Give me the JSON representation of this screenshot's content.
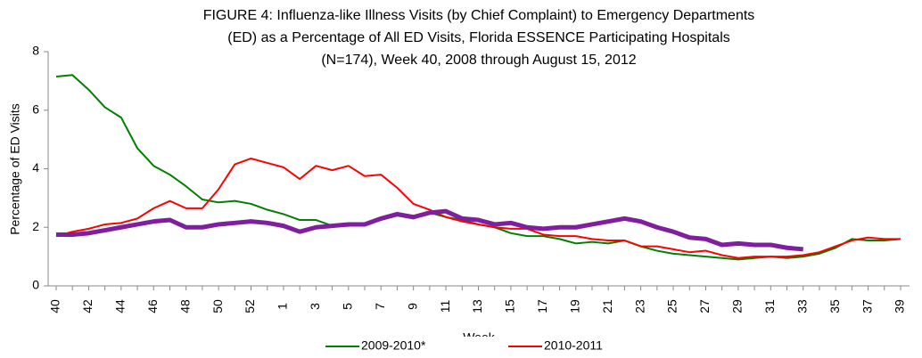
{
  "chart_data": {
    "type": "line",
    "title": [
      "FIGURE 4: Influenza-like Illness Visits (by Chief Complaint) to Emergency Departments",
      "(ED) as a Percentage of All ED Visits, Florida ESSENCE Participating Hospitals",
      "(N=174), Week 40, 2008 through August 15, 2012"
    ],
    "ylabel": "Percentage of ED Visits",
    "xlabel": "Week",
    "categories": [
      "40",
      null,
      "42",
      null,
      "44",
      null,
      "46",
      null,
      "48",
      null,
      "50",
      null,
      "52",
      null,
      "1",
      null,
      "3",
      null,
      "5",
      null,
      "7",
      null,
      "9",
      null,
      "11",
      null,
      "13",
      null,
      "15",
      null,
      "17",
      null,
      "19",
      null,
      "21",
      null,
      "23",
      null,
      "25",
      null,
      "27",
      null,
      "29",
      null,
      "31",
      null,
      "33",
      null,
      "35",
      null,
      "37",
      null,
      "39"
    ],
    "ylim": [
      0,
      8
    ],
    "yticks": [
      0,
      2,
      4,
      6,
      8
    ],
    "series": [
      {
        "name": "2009-2010*",
        "color": "#008000",
        "width": 2,
        "values": [
          7.15,
          7.2,
          6.7,
          6.1,
          5.75,
          4.7,
          4.1,
          3.8,
          3.4,
          2.95,
          2.85,
          2.9,
          2.8,
          2.6,
          2.45,
          2.25,
          2.25,
          2.05,
          2.05,
          2.1,
          2.25,
          2.4,
          2.3,
          2.5,
          2.35,
          2.25,
          2.1,
          2.0,
          1.8,
          1.7,
          1.7,
          1.6,
          1.45,
          1.5,
          1.45,
          1.55,
          1.35,
          1.2,
          1.1,
          1.05,
          1.0,
          0.95,
          0.9,
          0.95,
          1.0,
          0.95,
          1.0,
          1.1,
          1.3,
          1.6,
          1.55,
          1.55,
          1.6
        ]
      },
      {
        "name": "2010-2011",
        "color": "#ff0000",
        "width": 2,
        "values": [
          1.7,
          1.85,
          1.95,
          2.1,
          2.15,
          2.3,
          2.65,
          2.9,
          2.65,
          2.65,
          3.3,
          4.15,
          4.35,
          4.2,
          4.05,
          3.65,
          4.1,
          3.95,
          4.1,
          3.75,
          3.8,
          3.35,
          2.8,
          2.6,
          2.35,
          2.2,
          2.1,
          2.0,
          1.95,
          1.95,
          1.75,
          1.7,
          1.7,
          1.6,
          1.55,
          1.55,
          1.35,
          1.35,
          1.25,
          1.15,
          1.2,
          1.05,
          0.95,
          1.0,
          1.0,
          1.0,
          1.05,
          1.15,
          1.35,
          1.55,
          1.65,
          1.6,
          1.6
        ]
      },
      {
        "color": "#7f1f9f",
        "width": 5,
        "values": [
          1.75,
          1.75,
          1.8,
          1.9,
          2.0,
          2.1,
          2.2,
          2.25,
          2.0,
          2.0,
          2.1,
          2.15,
          2.2,
          2.15,
          2.05,
          1.85,
          2.0,
          2.05,
          2.1,
          2.1,
          2.3,
          2.45,
          2.35,
          2.5,
          2.55,
          2.3,
          2.25,
          2.1,
          2.15,
          2.0,
          1.95,
          2.0,
          2.0,
          2.1,
          2.2,
          2.3,
          2.2,
          2.0,
          1.85,
          1.65,
          1.6,
          1.4,
          1.45,
          1.4,
          1.4,
          1.3,
          1.25,
          null,
          null,
          null,
          null,
          null,
          null
        ]
      }
    ]
  }
}
